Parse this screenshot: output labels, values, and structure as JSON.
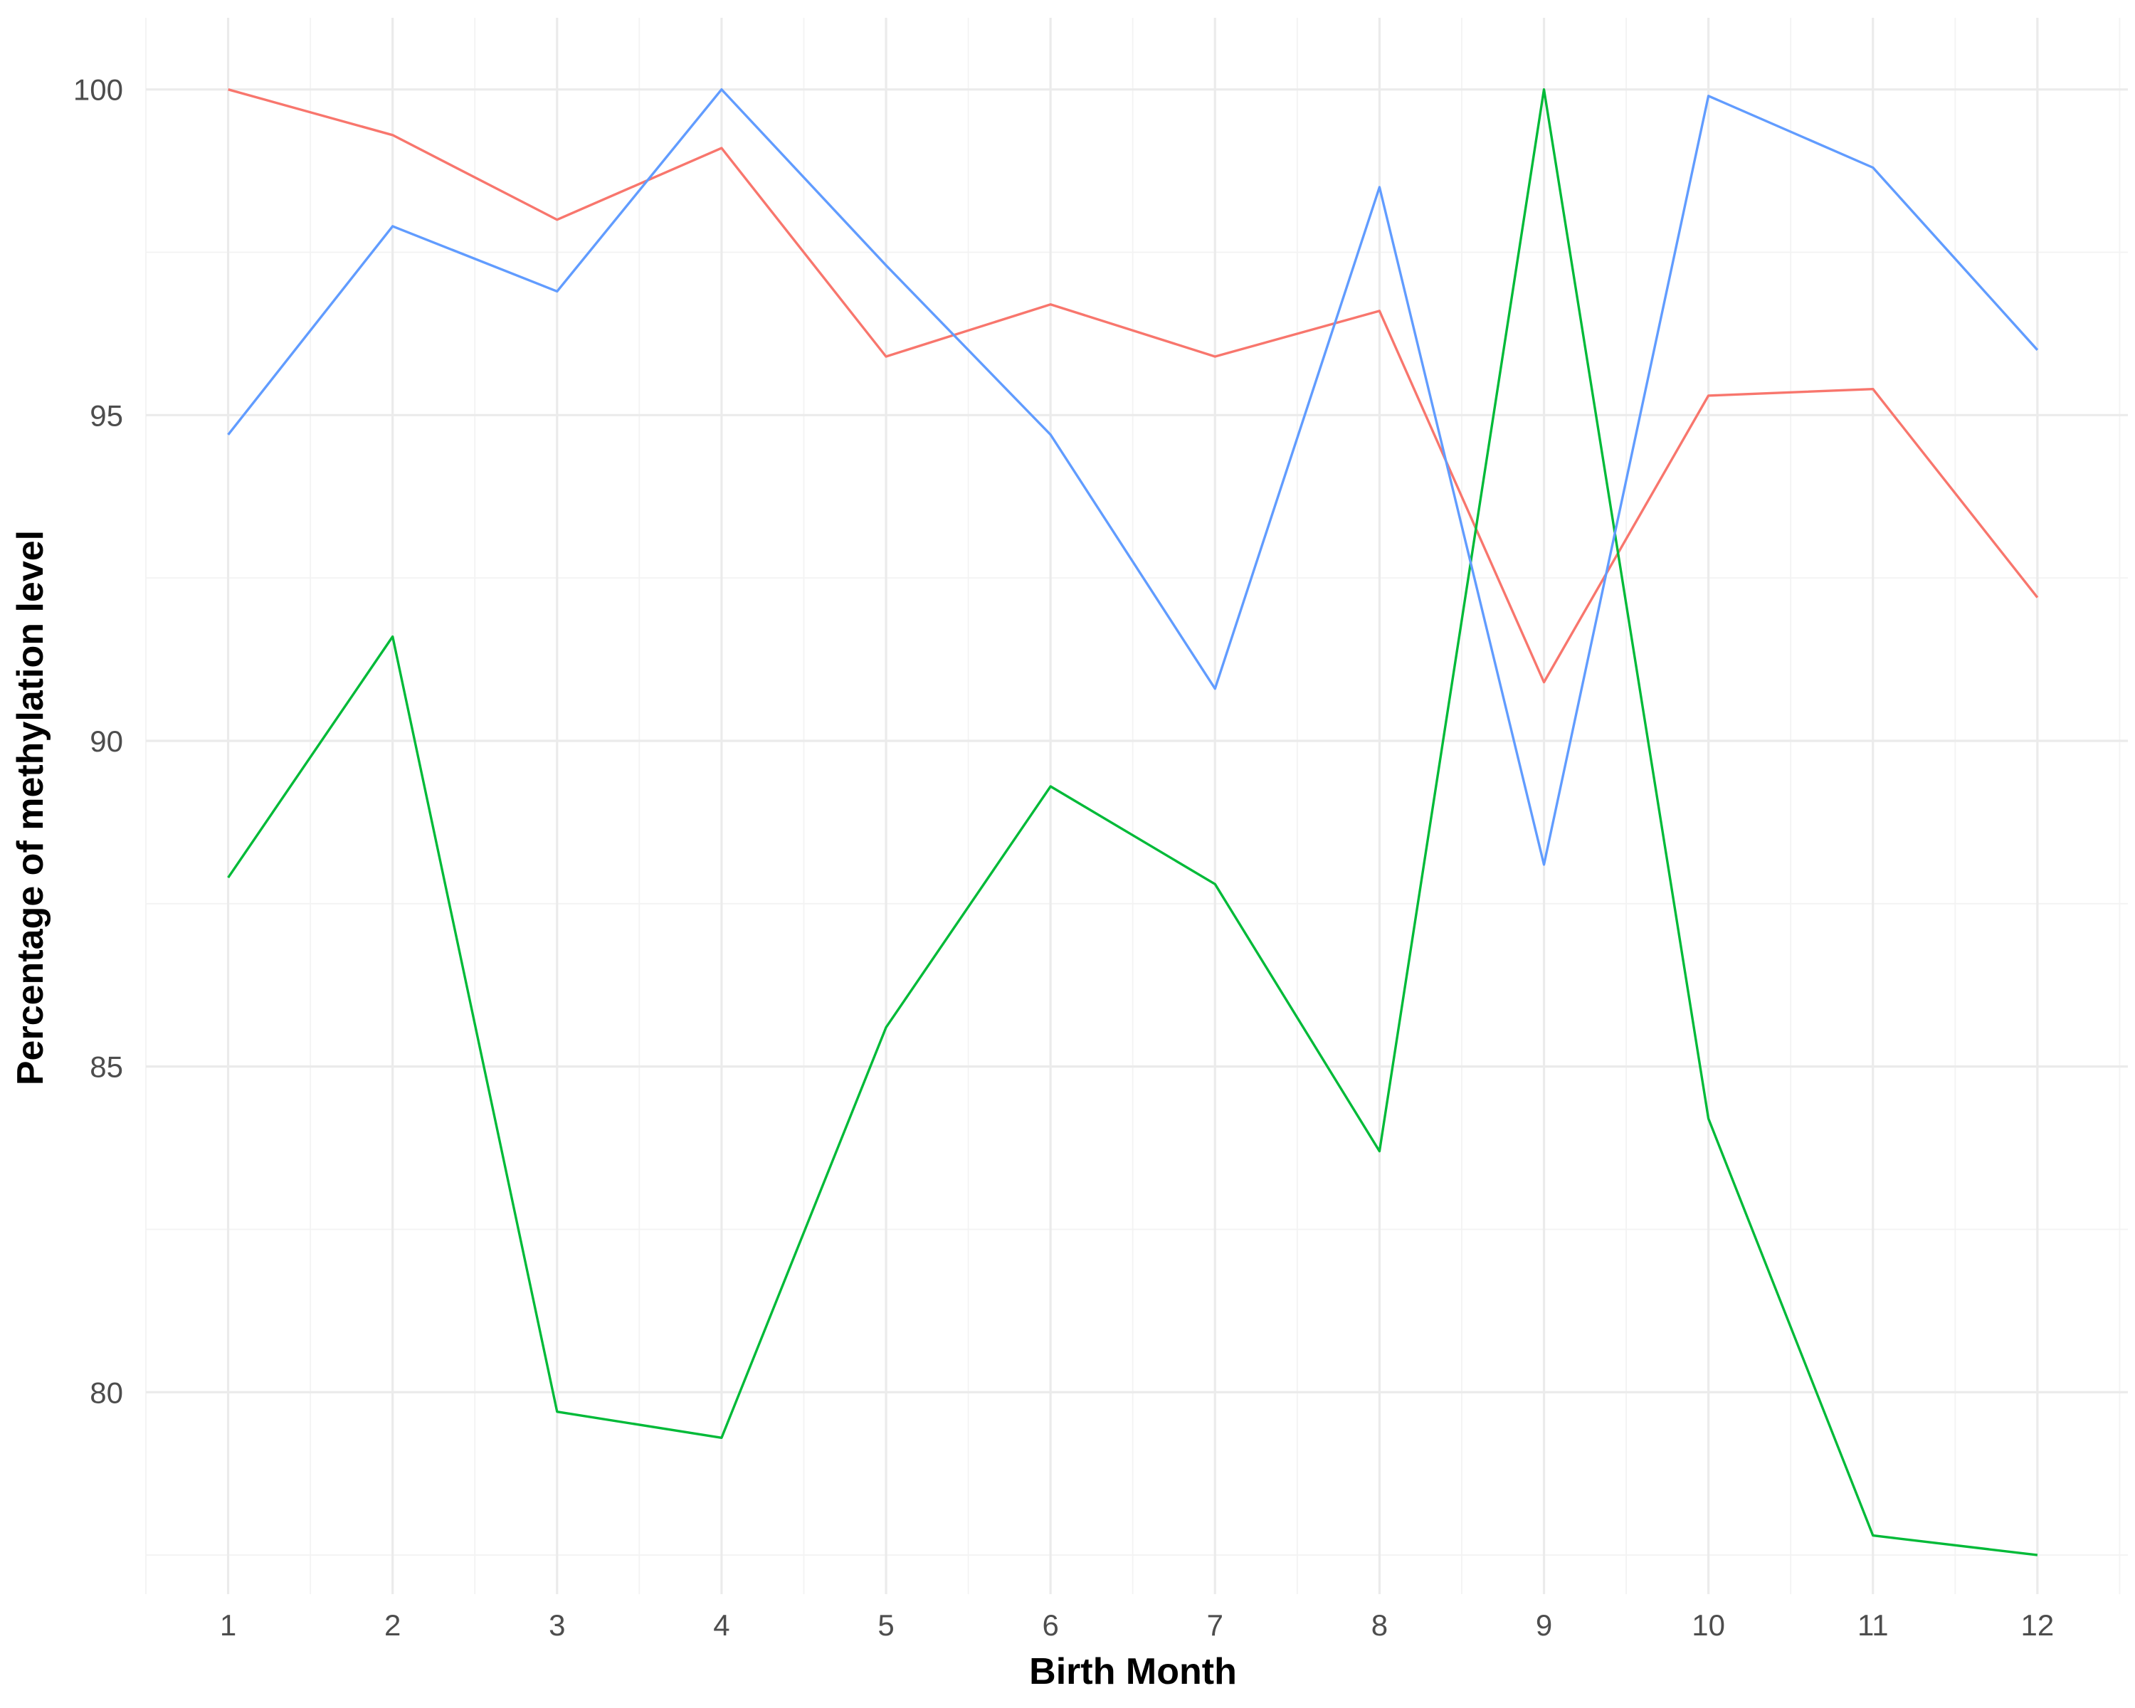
{
  "chart_data": {
    "type": "line",
    "title": "",
    "xlabel": "Birth Month",
    "ylabel": "Percentage of methylation level",
    "x": [
      1,
      2,
      3,
      4,
      5,
      6,
      7,
      8,
      9,
      10,
      11,
      12
    ],
    "x_tick_labels": [
      "1",
      "2",
      "3",
      "4",
      "5",
      "6",
      "7",
      "8",
      "9",
      "10",
      "11",
      "12"
    ],
    "y_ticks": [
      80,
      85,
      90,
      95,
      100
    ],
    "y_tick_labels": [
      "80",
      "85",
      "90",
      "95",
      "100"
    ],
    "xlim": [
      0.5,
      12.55
    ],
    "ylim": [
      76.9,
      101.1
    ],
    "grid": true,
    "legend": "none",
    "series": [
      {
        "color": "#F8766D",
        "values": [
          100.0,
          99.3,
          98.0,
          99.1,
          95.9,
          96.7,
          95.9,
          96.6,
          90.9,
          95.3,
          95.4,
          92.2
        ]
      },
      {
        "color": "#00BA38",
        "values": [
          87.9,
          91.6,
          79.7,
          79.3,
          85.6,
          89.3,
          87.8,
          83.7,
          100.0,
          84.2,
          77.8,
          77.5
        ]
      },
      {
        "color": "#619CFF",
        "values": [
          94.7,
          97.9,
          96.9,
          100.0,
          97.3,
          94.7,
          90.8,
          98.5,
          88.1,
          99.9,
          98.8,
          96.0
        ]
      }
    ]
  }
}
